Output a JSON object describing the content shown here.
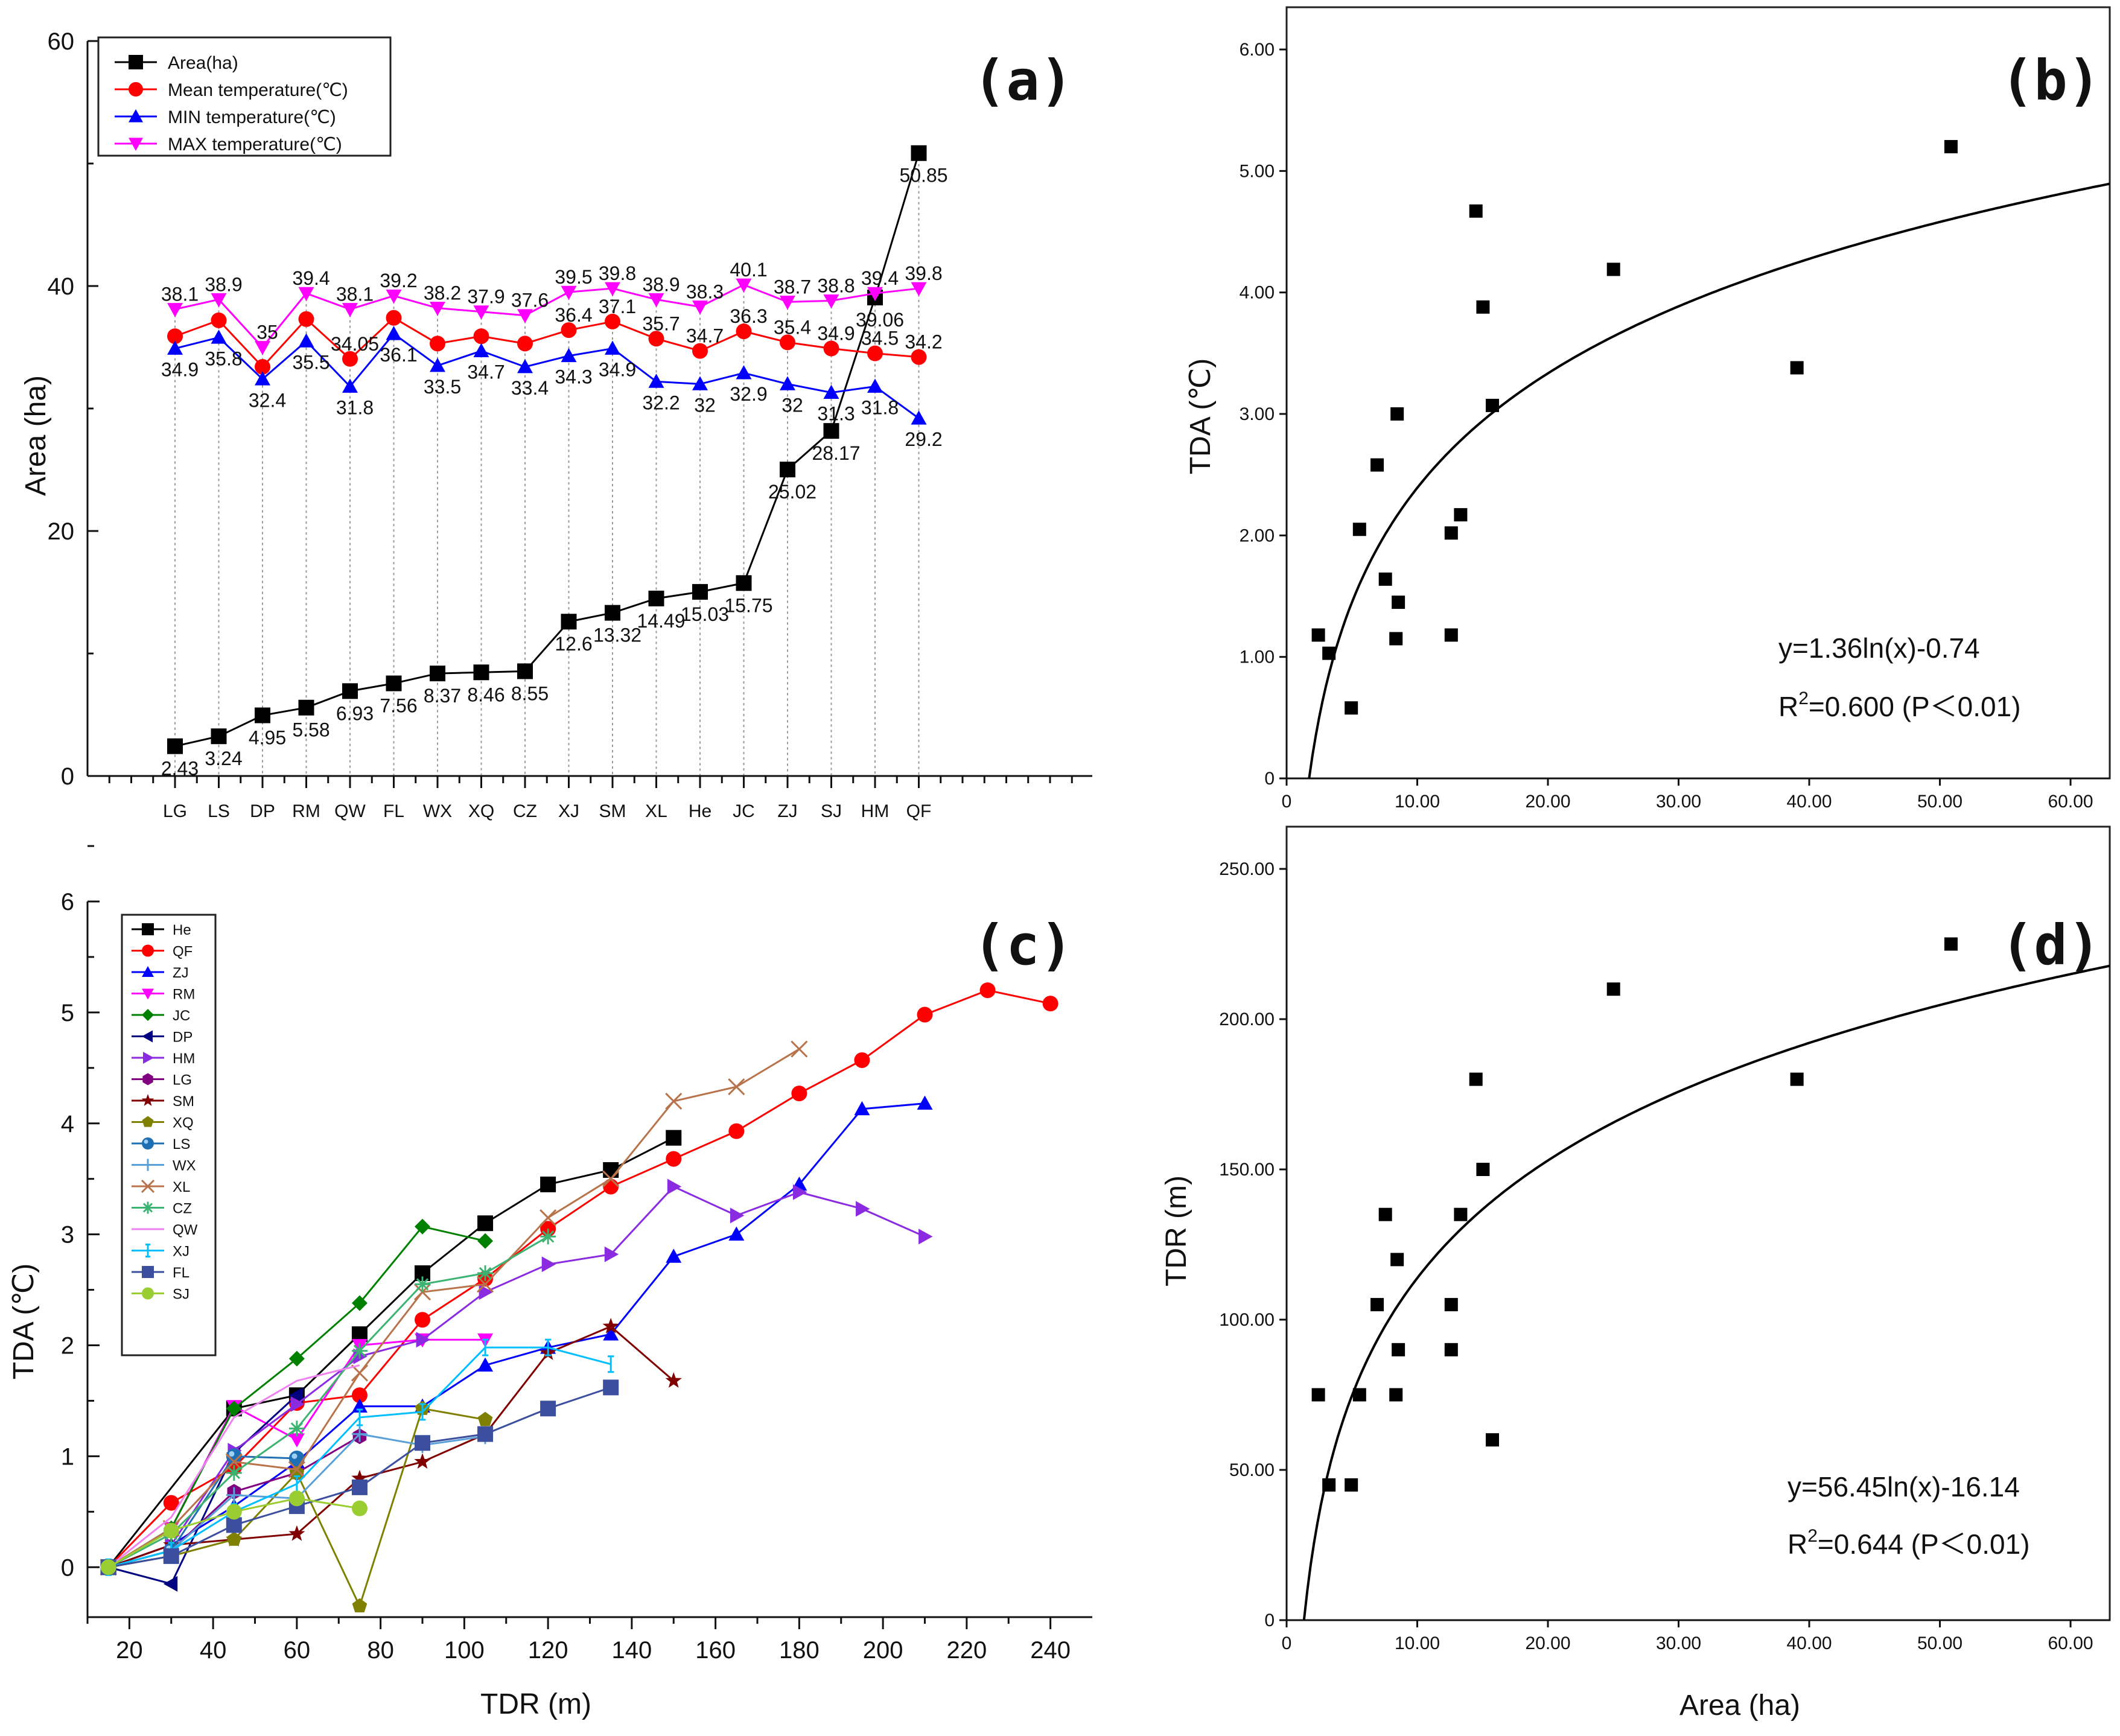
{
  "chart_data": [
    {
      "panel": "(a)",
      "type": "line",
      "title": "",
      "ylabel": "Area (ha)",
      "xlabel": "",
      "ylim": [
        0,
        60
      ],
      "yticks": [
        "0",
        "20",
        "40",
        "60"
      ],
      "categories": [
        "LG",
        "LS",
        "DP",
        "RM",
        "QW",
        "FL",
        "WX",
        "XQ",
        "CZ",
        "XJ",
        "SM",
        "XL",
        "He",
        "JC",
        "ZJ",
        "SJ",
        "HM",
        "QF"
      ],
      "legend_position": "top-left",
      "series": [
        {
          "name": "Area(ha)",
          "color": "#000000",
          "marker": "square",
          "values": [
            2.43,
            3.24,
            4.95,
            5.58,
            6.93,
            7.56,
            8.37,
            8.46,
            8.55,
            12.6,
            13.32,
            14.49,
            15.03,
            15.75,
            25.02,
            28.17,
            39.06,
            50.85
          ],
          "labels": [
            "2.43",
            "3.24",
            "4.95",
            "5.58",
            "6.93",
            "7.56",
            "8.37",
            "8.46",
            "8.55",
            "12.6",
            "13.32",
            "14.49",
            "15.03",
            "15.75",
            "25.02",
            "28.17",
            "39.06",
            "50.85"
          ]
        },
        {
          "name": "Mean temperature(℃)",
          "color": "#ff0000",
          "marker": "circle",
          "values": [
            35.9,
            37.2,
            33.4,
            37.3,
            34.05,
            37.4,
            35.3,
            35.9,
            35.3,
            36.4,
            37.1,
            35.7,
            34.7,
            36.3,
            35.4,
            34.9,
            34.5,
            34.2
          ],
          "labels": [
            "",
            "",
            "",
            "",
            "34.05",
            "",
            "",
            "",
            "",
            "36.4",
            "37.1",
            "35.7",
            "34.7",
            "36.3",
            "35.4",
            "34.9",
            "34.5",
            "34.2"
          ]
        },
        {
          "name": "MIN temperature(℃)",
          "color": "#0000ff",
          "marker": "triangle-up",
          "values": [
            34.9,
            35.8,
            32.4,
            35.5,
            31.8,
            36.1,
            33.5,
            34.7,
            33.4,
            34.3,
            34.9,
            32.2,
            32.0,
            32.9,
            32.0,
            31.3,
            31.8,
            29.2
          ],
          "labels": [
            "34.9",
            "35.8",
            "32.4",
            "35.5",
            "31.8",
            "36.1",
            "33.5",
            "34.7",
            "33.4",
            "34.3",
            "34.9",
            "32.2",
            "32",
            "32.9",
            "32",
            "31.3",
            "31.8",
            "29.2"
          ]
        },
        {
          "name": "MAX temperature(℃)",
          "color": "#ff00ff",
          "marker": "triangle-down",
          "values": [
            38.1,
            38.9,
            35.0,
            39.4,
            38.1,
            39.2,
            38.2,
            37.9,
            37.6,
            39.5,
            39.8,
            38.9,
            38.3,
            40.1,
            38.7,
            38.8,
            39.4,
            39.8
          ],
          "labels": [
            "38.1",
            "38.9",
            "35",
            "39.4",
            "38.1",
            "39.2",
            "38.2",
            "37.9",
            "37.6",
            "39.5",
            "39.8",
            "38.9",
            "38.3",
            "40.1",
            "38.7",
            "38.8",
            "39.4",
            "39.8"
          ]
        }
      ]
    },
    {
      "panel": "(b)",
      "type": "scatter",
      "title": "",
      "xlabel": "",
      "ylabel": "TDA (℃)",
      "xlim": [
        0,
        63
      ],
      "ylim": [
        0,
        6.0
      ],
      "xticks": [
        "0",
        "10.00",
        "20.00",
        "30.00",
        "40.00",
        "50.00",
        "60.00"
      ],
      "yticks": [
        "0",
        "1.00",
        "2.00",
        "3.00",
        "4.00",
        "5.00",
        "6.00"
      ],
      "points": [
        [
          2.43,
          1.18
        ],
        [
          3.24,
          1.03
        ],
        [
          4.95,
          0.58
        ],
        [
          5.58,
          2.05
        ],
        [
          6.93,
          2.58
        ],
        [
          7.56,
          1.64
        ],
        [
          8.37,
          1.15
        ],
        [
          8.46,
          3.0
        ],
        [
          8.55,
          1.45
        ],
        [
          12.6,
          2.02
        ],
        [
          12.6,
          1.18
        ],
        [
          13.32,
          2.17
        ],
        [
          14.49,
          4.67
        ],
        [
          15.03,
          3.88
        ],
        [
          15.75,
          3.07
        ],
        [
          25.02,
          4.19
        ],
        [
          39.06,
          3.38
        ],
        [
          50.85,
          5.2
        ]
      ],
      "fit": {
        "a": 1.36,
        "b": -0.74
      },
      "equation": "y=1.36ln(x)-0.74",
      "r2_prefix": "R",
      "r2_sup": "2",
      "r2_rest": "=0.600  (P＜0.01)"
    },
    {
      "panel": "(c)",
      "type": "line",
      "title": "",
      "xlabel": "TDR (m)",
      "ylabel": "TDA (℃)",
      "xlim": [
        10,
        250
      ],
      "ylim": [
        -0.45,
        6
      ],
      "xticks": [
        "20",
        "40",
        "60",
        "80",
        "100",
        "120",
        "140",
        "160",
        "180",
        "200",
        "220",
        "240"
      ],
      "yticks": [
        "0",
        "1",
        "2",
        "3",
        "4",
        "5",
        "6"
      ],
      "legend_position": "top-left",
      "series": [
        {
          "name": "He",
          "color": "#000000",
          "marker": "square",
          "x": [
            15,
            45,
            60,
            75,
            90,
            105,
            120,
            135,
            150
          ],
          "y": [
            0,
            1.43,
            1.55,
            2.1,
            2.65,
            3.1,
            3.45,
            3.58,
            3.87
          ]
        },
        {
          "name": "QF",
          "color": "#ff0000",
          "marker": "circle",
          "x": [
            15,
            30,
            45,
            60,
            75,
            90,
            105,
            120,
            135,
            150,
            165,
            180,
            195,
            210,
            225,
            240
          ],
          "y": [
            0,
            0.58,
            0.9,
            1.48,
            1.55,
            2.23,
            2.6,
            3.05,
            3.43,
            3.68,
            3.93,
            4.27,
            4.57,
            4.98,
            5.2,
            5.08
          ]
        },
        {
          "name": "ZJ",
          "color": "#0000ff",
          "marker": "triangle-up",
          "x": [
            15,
            30,
            45,
            60,
            75,
            90,
            105,
            120,
            135,
            150,
            165,
            180,
            195,
            210
          ],
          "y": [
            0,
            0.2,
            0.55,
            0.95,
            1.45,
            1.45,
            1.82,
            1.98,
            2.1,
            2.8,
            3.0,
            3.45,
            4.13,
            4.18
          ]
        },
        {
          "name": "RM",
          "color": "#ff00ff",
          "marker": "triangle-down",
          "x": [
            15,
            30,
            45,
            60,
            75,
            90,
            105
          ],
          "y": [
            0,
            0.35,
            1.45,
            1.15,
            2.0,
            2.05,
            2.05
          ]
        },
        {
          "name": "JC",
          "color": "#008000",
          "marker": "diamond",
          "x": [
            15,
            30,
            45,
            60,
            75,
            90,
            105
          ],
          "y": [
            0,
            0.35,
            1.43,
            1.88,
            2.38,
            3.07,
            2.94
          ]
        },
        {
          "name": "DP",
          "color": "#000080",
          "marker": "triangle-left",
          "x": [
            15,
            30,
            45,
            60
          ],
          "y": [
            0,
            -0.15,
            1.03,
            1.55
          ]
        },
        {
          "name": "HM",
          "color": "#8a2be2",
          "marker": "triangle-right",
          "x": [
            15,
            30,
            45,
            60,
            75,
            90,
            105,
            120,
            135,
            150,
            165,
            180,
            195,
            210
          ],
          "y": [
            0,
            0.2,
            1.05,
            1.47,
            1.9,
            2.05,
            2.48,
            2.73,
            2.82,
            3.43,
            3.17,
            3.38,
            3.23,
            2.98
          ]
        },
        {
          "name": "LG",
          "color": "#800080",
          "marker": "hexagon",
          "x": [
            15,
            30,
            45,
            60,
            75
          ],
          "y": [
            0,
            0.15,
            0.68,
            0.85,
            1.18
          ]
        },
        {
          "name": "SM",
          "color": "#800000",
          "marker": "star",
          "x": [
            15,
            30,
            45,
            60,
            75,
            90,
            105,
            120,
            135,
            150
          ],
          "y": [
            0,
            0.2,
            0.25,
            0.3,
            0.8,
            0.95,
            1.2,
            1.93,
            2.17,
            1.68
          ]
        },
        {
          "name": "XQ",
          "color": "#808000",
          "marker": "pentagon",
          "x": [
            15,
            30,
            45,
            60,
            75,
            90,
            105
          ],
          "y": [
            0,
            0.1,
            0.25,
            0.85,
            -0.35,
            1.43,
            1.33
          ]
        },
        {
          "name": "LS",
          "color": "#1f6fb4",
          "marker": "circle-dot",
          "x": [
            15,
            30,
            45,
            60
          ],
          "y": [
            0,
            0.15,
            1.0,
            0.98
          ]
        },
        {
          "name": "WX",
          "color": "#5aa0d8",
          "marker": "plus",
          "x": [
            15,
            30,
            45,
            60,
            75,
            90,
            105
          ],
          "y": [
            0,
            0.15,
            0.65,
            0.62,
            1.2,
            1.1,
            1.18
          ]
        },
        {
          "name": "XL",
          "color": "#b8734a",
          "marker": "x",
          "x": [
            15,
            30,
            45,
            60,
            75,
            90,
            105,
            120,
            135,
            150,
            165,
            180
          ],
          "y": [
            0,
            0.35,
            0.95,
            0.88,
            1.75,
            2.48,
            2.55,
            3.15,
            3.5,
            4.2,
            4.33,
            4.67
          ]
        },
        {
          "name": "CZ",
          "color": "#3cb371",
          "marker": "asterisk",
          "x": [
            15,
            30,
            45,
            60,
            75,
            90,
            105,
            120
          ],
          "y": [
            0,
            0.3,
            0.85,
            1.25,
            1.95,
            2.55,
            2.65,
            2.98
          ]
        },
        {
          "name": "QW",
          "color": "#ee82ee",
          "marker": "none",
          "x": [
            15,
            30,
            45,
            60,
            75
          ],
          "y": [
            0,
            0.45,
            1.35,
            1.68,
            1.82
          ]
        },
        {
          "name": "XJ",
          "color": "#00bfff",
          "marker": "bar",
          "x": [
            15,
            30,
            45,
            60,
            75,
            90,
            105,
            120,
            135
          ],
          "y": [
            0,
            0.15,
            0.5,
            0.75,
            1.35,
            1.4,
            1.98,
            1.98,
            1.83
          ]
        },
        {
          "name": "FL",
          "color": "#3b4f9e",
          "marker": "square-fill",
          "x": [
            15,
            30,
            45,
            60,
            75,
            90,
            105,
            120,
            135
          ],
          "y": [
            0,
            0.1,
            0.38,
            0.55,
            0.72,
            1.12,
            1.2,
            1.43,
            1.62
          ]
        },
        {
          "name": "SJ",
          "color": "#9acd32",
          "marker": "circle-fill",
          "x": [
            15,
            30,
            45,
            60,
            75
          ],
          "y": [
            0,
            0.33,
            0.5,
            0.62,
            0.53
          ]
        }
      ]
    },
    {
      "panel": "(d)",
      "type": "scatter",
      "title": "",
      "xlabel": "Area (ha)",
      "ylabel": "TDR (m)",
      "xlim": [
        0,
        63
      ],
      "ylim": [
        0,
        250
      ],
      "xticks": [
        "0",
        "10.00",
        "20.00",
        "30.00",
        "40.00",
        "50.00",
        "60.00"
      ],
      "yticks": [
        "0",
        "50.00",
        "100.00",
        "150.00",
        "200.00",
        "250.00"
      ],
      "points": [
        [
          2.43,
          75
        ],
        [
          3.24,
          45
        ],
        [
          4.95,
          45
        ],
        [
          5.58,
          75
        ],
        [
          6.93,
          105
        ],
        [
          7.56,
          135
        ],
        [
          8.37,
          75
        ],
        [
          8.46,
          120
        ],
        [
          8.55,
          90
        ],
        [
          12.6,
          90
        ],
        [
          12.6,
          105
        ],
        [
          13.32,
          135
        ],
        [
          14.49,
          180
        ],
        [
          15.03,
          150
        ],
        [
          15.75,
          60
        ],
        [
          25.02,
          210
        ],
        [
          39.06,
          180
        ],
        [
          50.85,
          225
        ]
      ],
      "fit": {
        "a": 56.45,
        "b": -16.14
      },
      "equation": "y=56.45ln(x)-16.14",
      "r2_prefix": "R",
      "r2_sup": "2",
      "r2_rest": "=0.644  (P＜0.01)"
    }
  ]
}
